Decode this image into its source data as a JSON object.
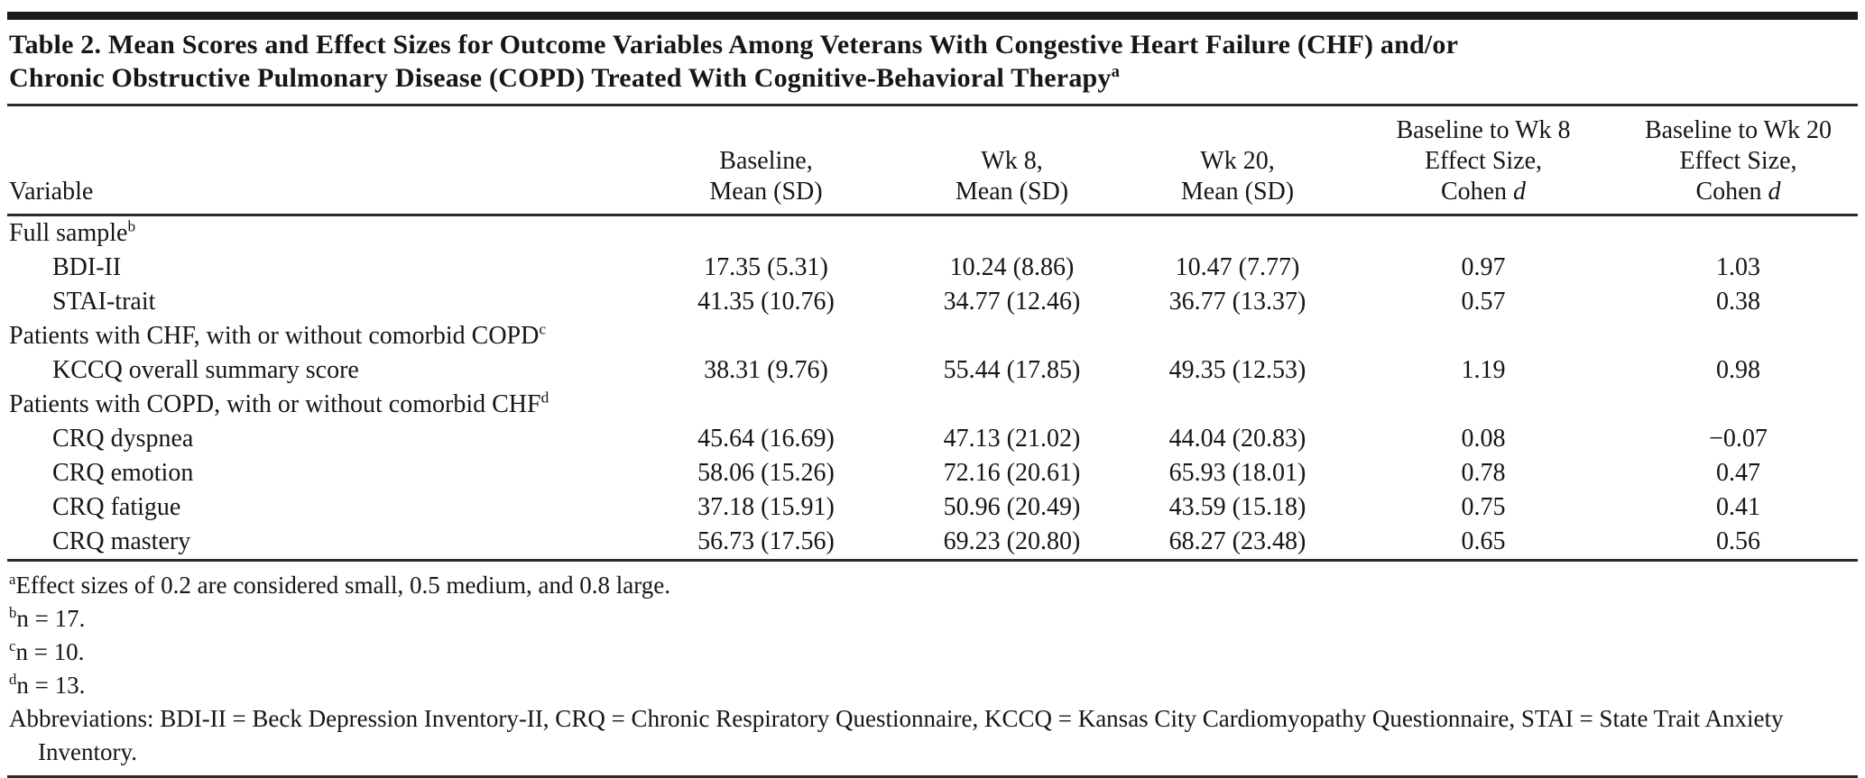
{
  "colors": {
    "text": "#161616",
    "rule": "#2b2b2b",
    "background": "#ffffff"
  },
  "table": {
    "title_lines": [
      "Table 2. Mean Scores and Effect Sizes for Outcome Variables Among Veterans With Congestive Heart Failure (CHF) and/or",
      "Chronic Obstructive Pulmonary Disease (COPD) Treated With Cognitive-Behavioral Therapy"
    ],
    "title_superscript": "a",
    "columns": [
      {
        "label": "Variable"
      },
      {
        "line1": "Baseline,",
        "line2": "Mean (SD)"
      },
      {
        "line1": "Wk 8,",
        "line2": "Mean (SD)"
      },
      {
        "line1": "Wk 20,",
        "line2": "Mean (SD)"
      },
      {
        "line1": "Baseline to Wk 8",
        "line2": "Effect Size,",
        "cohen": "Cohen",
        "d": "d"
      },
      {
        "line1": "Baseline to Wk 20",
        "line2": "Effect Size,",
        "cohen": "Cohen",
        "d": "d"
      }
    ],
    "rows": [
      {
        "label": "Full sample",
        "sup": "b",
        "values": [
          "",
          "",
          "",
          "",
          ""
        ]
      },
      {
        "label": "BDI-II",
        "values": [
          "17.35 (5.31)",
          "10.24 (8.86)",
          "10.47 (7.77)",
          "0.97",
          "1.03"
        ]
      },
      {
        "label": "STAI-trait",
        "values": [
          "41.35 (10.76)",
          "34.77 (12.46)",
          "36.77 (13.37)",
          "0.57",
          "0.38"
        ]
      },
      {
        "label": "Patients with CHF, with or without comorbid COPD",
        "sup": "c",
        "values": [
          "",
          "",
          "",
          "",
          ""
        ]
      },
      {
        "label": "KCCQ overall summary score",
        "values": [
          "38.31 (9.76)",
          "55.44 (17.85)",
          "49.35 (12.53)",
          "1.19",
          "0.98"
        ]
      },
      {
        "label": "Patients with COPD, with or without comorbid CHF",
        "sup": "d",
        "values": [
          "",
          "",
          "",
          "",
          ""
        ]
      },
      {
        "label": "CRQ dyspnea",
        "values": [
          "45.64 (16.69)",
          "47.13 (21.02)",
          "44.04 (20.83)",
          "0.08",
          "−0.07"
        ]
      },
      {
        "label": "CRQ emotion",
        "values": [
          "58.06 (15.26)",
          "72.16 (20.61)",
          "65.93 (18.01)",
          "0.78",
          "0.47"
        ]
      },
      {
        "label": "CRQ fatigue",
        "values": [
          "37.18 (15.91)",
          "50.96 (20.49)",
          "43.59 (15.18)",
          "0.75",
          "0.41"
        ]
      },
      {
        "label": "CRQ mastery",
        "values": [
          "56.73 (17.56)",
          "69.23 (20.80)",
          "68.27 (23.48)",
          "0.65",
          "0.56"
        ]
      }
    ],
    "footnotes": [
      {
        "sup": "a",
        "text": "Effect sizes of 0.2 are considered small, 0.5 medium, and 0.8 large."
      },
      {
        "sup": "b",
        "text": "n = 17."
      },
      {
        "sup": "c",
        "text": "n = 10."
      },
      {
        "sup": "d",
        "text": "n = 13."
      },
      {
        "sup": "",
        "text": "Abbreviations: BDI-II = Beck Depression Inventory-II, CRQ = Chronic Respiratory Questionnaire, KCCQ = Kansas City Cardiomyopathy Questionnaire, STAI = State Trait Anxiety Inventory."
      }
    ]
  }
}
